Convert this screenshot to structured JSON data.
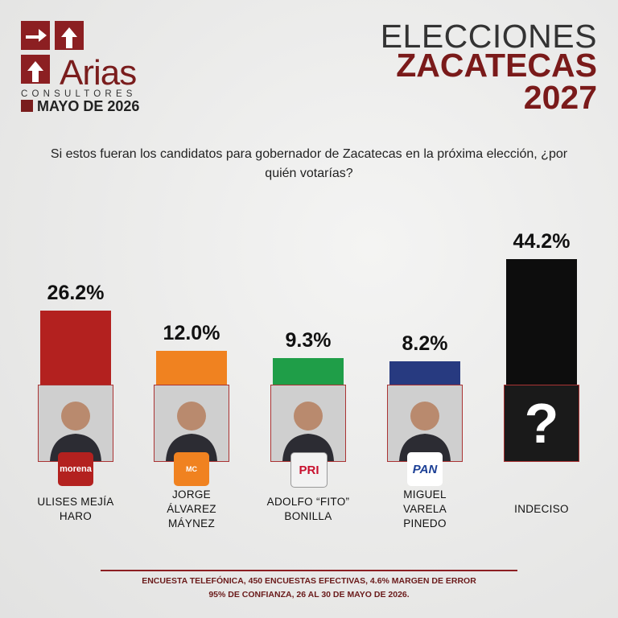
{
  "header": {
    "brand": "Arias",
    "brand_sub": "CONSULTORES",
    "date": "MAYO DE 2026",
    "title_lines": [
      "ELECCIONES",
      "ZACATECAS",
      "2027"
    ]
  },
  "question": "Si estos fueran los candidatos para gobernador de Zacatecas en la próxima elección, ¿por quién votarías?",
  "chart_data": {
    "type": "bar",
    "categories": [
      "ULISES MEJÍA HARO",
      "JORGE ÁLVAREZ MÁYNEZ",
      "ADOLFO “FITO” BONILLA",
      "MIGUEL VARELA PINEDO",
      "INDECISO"
    ],
    "values": [
      26.2,
      12.0,
      9.3,
      8.2,
      44.2
    ],
    "value_labels": [
      "26.2%",
      "12.0%",
      "9.3%",
      "8.2%",
      "44.2%"
    ],
    "colors": [
      "#b3211f",
      "#f08220",
      "#1f9e48",
      "#273a80",
      "#0d0d0d"
    ]
  },
  "party_logos": [
    "morena",
    "MC",
    "PRI",
    "PAN"
  ],
  "undecided_symbol": "?",
  "footer": [
    "ENCUESTA TELEFÓNICA, 450 ENCUESTAS EFECTIVAS, 4.6%  MARGEN DE ERROR",
    "95% DE CONFIANZA, 26 AL 30 DE MAYO DE 2026."
  ]
}
